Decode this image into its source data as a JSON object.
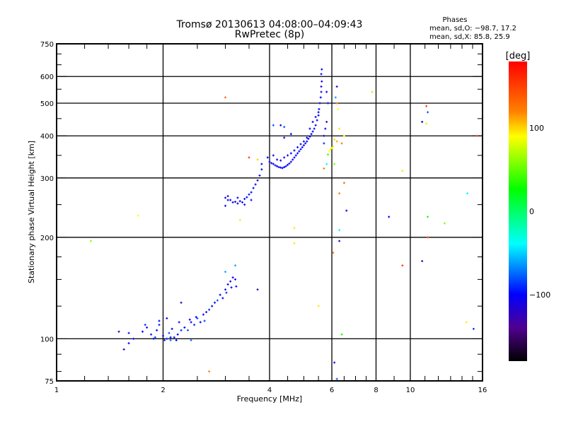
{
  "chart_data": {
    "type": "scatter",
    "title": "Tromsø 20130613 04:08:00–04:09:43",
    "subtitle": "RwPretec (8p)",
    "stats": {
      "header": "Phases",
      "o_line": "mean, sd,O:  −98.7, 17.2",
      "x_line": "mean, sd,X:  85.8, 25.9"
    },
    "xlabel": "Frequency [MHz]",
    "ylabel": "Stationary phase Virtual Height [km]",
    "xscale": "log",
    "yscale": "log",
    "xlim": [
      1,
      16
    ],
    "ylim": [
      75,
      750
    ],
    "xticks": [
      1,
      2,
      4,
      6,
      8,
      10,
      16
    ],
    "xtick_labels": [
      "1",
      "2",
      "4",
      "6",
      "8",
      "10",
      "16"
    ],
    "yticks": [
      75,
      100,
      200,
      300,
      400,
      500,
      600,
      750
    ],
    "ytick_labels": [
      "75",
      "100",
      "200",
      "300",
      "400",
      "500",
      "600",
      "750"
    ],
    "xgrid": [
      2,
      4,
      6,
      8,
      10
    ],
    "ygrid": [
      100,
      200,
      300,
      400,
      500,
      600
    ],
    "grid": true,
    "colorbar": {
      "label": "[deg]",
      "range": [
        -180,
        180
      ],
      "ticks": [
        100,
        0,
        -100
      ],
      "tick_labels": [
        "100",
        "0",
        "−100"
      ],
      "stops": [
        [
          180,
          "#ff0000"
        ],
        [
          120,
          "#ff8000"
        ],
        [
          90,
          "#ffff00"
        ],
        [
          26,
          "#00ff00"
        ],
        [
          -39,
          "#00ffff"
        ],
        [
          -100,
          "#0000ff"
        ],
        [
          -140,
          "#500090"
        ],
        [
          -180,
          "#000000"
        ]
      ]
    },
    "points_fields": [
      "frequency_MHz",
      "height_km",
      "phase_deg"
    ],
    "points": [
      [
        1.55,
        93,
        -110
      ],
      [
        1.6,
        97,
        -100
      ],
      [
        1.6,
        104,
        -95
      ],
      [
        1.65,
        100,
        -105
      ],
      [
        1.75,
        105,
        -100
      ],
      [
        1.78,
        110,
        -90
      ],
      [
        1.8,
        108,
        -100
      ],
      [
        1.85,
        103,
        -95
      ],
      [
        1.88,
        100,
        -100
      ],
      [
        1.9,
        101,
        -85
      ],
      [
        1.92,
        106,
        -100
      ],
      [
        1.95,
        110,
        -95
      ],
      [
        2.0,
        102,
        -100
      ],
      [
        2.02,
        99,
        -90
      ],
      [
        2.05,
        100,
        -100
      ],
      [
        2.08,
        104,
        -80
      ],
      [
        2.1,
        101,
        -100
      ],
      [
        2.12,
        107,
        -100
      ],
      [
        2.15,
        101,
        -95
      ],
      [
        2.18,
        99,
        -100
      ],
      [
        2.2,
        103,
        -100
      ],
      [
        2.22,
        112,
        -110
      ],
      [
        2.25,
        106,
        -90
      ],
      [
        2.3,
        108,
        -100
      ],
      [
        2.35,
        106,
        -80
      ],
      [
        2.38,
        114,
        -100
      ],
      [
        2.4,
        112,
        -100
      ],
      [
        2.45,
        110,
        -90
      ],
      [
        2.48,
        116,
        -100
      ],
      [
        2.5,
        115,
        -80
      ],
      [
        2.55,
        112,
        -100
      ],
      [
        2.6,
        118,
        -100
      ],
      [
        2.62,
        113,
        -85
      ],
      [
        2.65,
        120,
        -100
      ],
      [
        2.7,
        122,
        -90
      ],
      [
        2.75,
        125,
        -100
      ],
      [
        2.8,
        128,
        -100
      ],
      [
        2.85,
        130,
        -80
      ],
      [
        2.9,
        135,
        -100
      ],
      [
        2.95,
        132,
        -100
      ],
      [
        3.0,
        140,
        -100
      ],
      [
        3.02,
        137,
        -90
      ],
      [
        3.05,
        145,
        -100
      ],
      [
        3.1,
        148,
        -105
      ],
      [
        3.12,
        142,
        -100
      ],
      [
        3.15,
        152,
        -100
      ],
      [
        3.2,
        150,
        -100
      ],
      [
        3.22,
        143,
        -100
      ],
      [
        2.25,
        128,
        -120
      ],
      [
        2.4,
        99,
        -70
      ],
      [
        1.95,
        113,
        -100
      ],
      [
        2.05,
        115,
        -100
      ],
      [
        3.0,
        158,
        -60
      ],
      [
        2.05,
        100,
        -85
      ],
      [
        2.1,
        99,
        -70
      ],
      [
        3.0,
        262,
        -110
      ],
      [
        3.05,
        258,
        -100
      ],
      [
        3.1,
        258,
        -100
      ],
      [
        3.15,
        254,
        -110
      ],
      [
        3.2,
        255,
        -100
      ],
      [
        3.25,
        252,
        -100
      ],
      [
        3.3,
        256,
        -100
      ],
      [
        3.35,
        254,
        -100
      ],
      [
        3.4,
        260,
        -100
      ],
      [
        3.45,
        263,
        -100
      ],
      [
        3.5,
        268,
        -100
      ],
      [
        3.55,
        272,
        -100
      ],
      [
        3.6,
        280,
        -100
      ],
      [
        3.65,
        287,
        -100
      ],
      [
        3.7,
        295,
        -100
      ],
      [
        3.75,
        305,
        -100
      ],
      [
        3.8,
        318,
        -100
      ],
      [
        3.0,
        248,
        -105
      ],
      [
        3.05,
        265,
        -120
      ],
      [
        3.25,
        262,
        -100
      ],
      [
        3.4,
        250,
        -110
      ],
      [
        3.55,
        258,
        -100
      ],
      [
        3.95,
        345,
        -100
      ],
      [
        4.0,
        335,
        -100
      ],
      [
        4.05,
        332,
        -100
      ],
      [
        4.1,
        330,
        -100
      ],
      [
        4.15,
        327,
        -100
      ],
      [
        4.2,
        325,
        -100
      ],
      [
        4.25,
        323,
        -110
      ],
      [
        4.3,
        322,
        -100
      ],
      [
        4.35,
        321,
        -100
      ],
      [
        4.4,
        323,
        -100
      ],
      [
        4.45,
        325,
        -100
      ],
      [
        4.5,
        328,
        -100
      ],
      [
        4.55,
        331,
        -100
      ],
      [
        4.6,
        335,
        -100
      ],
      [
        4.65,
        340,
        -100
      ],
      [
        4.7,
        345,
        -100
      ],
      [
        4.75,
        350,
        -100
      ],
      [
        4.8,
        355,
        -100
      ],
      [
        4.85,
        360,
        -100
      ],
      [
        4.9,
        365,
        -100
      ],
      [
        4.95,
        370,
        -100
      ],
      [
        5.0,
        375,
        -100
      ],
      [
        5.05,
        380,
        -100
      ],
      [
        5.1,
        385,
        -100
      ],
      [
        5.15,
        392,
        -100
      ],
      [
        5.2,
        398,
        -100
      ],
      [
        5.25,
        405,
        -100
      ],
      [
        5.3,
        412,
        -100
      ],
      [
        5.35,
        420,
        -100
      ],
      [
        5.4,
        430,
        -100
      ],
      [
        5.45,
        445,
        -100
      ],
      [
        5.5,
        460,
        -100
      ],
      [
        5.52,
        480,
        -100
      ],
      [
        5.55,
        500,
        -100
      ],
      [
        5.58,
        520,
        -100
      ],
      [
        5.6,
        540,
        -100
      ],
      [
        5.6,
        560,
        -110
      ],
      [
        5.62,
        580,
        -100
      ],
      [
        5.6,
        610,
        -100
      ],
      [
        5.62,
        630,
        -100
      ],
      [
        4.2,
        340,
        -100
      ],
      [
        4.3,
        338,
        -100
      ],
      [
        4.4,
        345,
        -100
      ],
      [
        4.5,
        350,
        -110
      ],
      [
        4.6,
        355,
        -100
      ],
      [
        4.7,
        362,
        -100
      ],
      [
        4.8,
        370,
        -100
      ],
      [
        4.9,
        378,
        -100
      ],
      [
        5.0,
        385,
        -100
      ],
      [
        5.1,
        395,
        -100
      ],
      [
        5.2,
        420,
        -100
      ],
      [
        5.3,
        440,
        -100
      ],
      [
        5.4,
        455,
        -100
      ],
      [
        5.5,
        470,
        -100
      ],
      [
        5.7,
        400,
        -100
      ],
      [
        5.75,
        420,
        -100
      ],
      [
        5.8,
        440,
        -110
      ],
      [
        5.85,
        500,
        -100
      ],
      [
        5.8,
        540,
        -100
      ],
      [
        5.7,
        380,
        -90
      ],
      [
        4.3,
        430,
        -100
      ],
      [
        4.4,
        425,
        -80
      ],
      [
        4.6,
        405,
        -100
      ],
      [
        4.4,
        395,
        -100
      ],
      [
        3.8,
        330,
        -100
      ],
      [
        4.1,
        350,
        -110
      ],
      [
        5.9,
        360,
        90
      ],
      [
        5.95,
        365,
        95
      ],
      [
        6.0,
        368,
        85
      ],
      [
        6.05,
        372,
        90
      ],
      [
        5.85,
        352,
        40
      ],
      [
        6.1,
        390,
        100
      ],
      [
        6.2,
        385,
        110
      ],
      [
        6.3,
        420,
        95
      ],
      [
        6.25,
        480,
        90
      ],
      [
        6.2,
        500,
        130
      ],
      [
        6.2,
        560,
        -120
      ],
      [
        6.15,
        520,
        -60
      ],
      [
        6.1,
        330,
        60
      ],
      [
        6.4,
        380,
        120
      ],
      [
        6.5,
        400,
        90
      ],
      [
        5.8,
        330,
        -40
      ],
      [
        5.7,
        320,
        120
      ],
      [
        3.0,
        520,
        130
      ],
      [
        1.25,
        195,
        60
      ],
      [
        1.7,
        232,
        90
      ],
      [
        2.7,
        80,
        120
      ],
      [
        3.3,
        225,
        95
      ],
      [
        3.5,
        345,
        150
      ],
      [
        3.7,
        140,
        -130
      ],
      [
        3.2,
        165,
        -60
      ],
      [
        4.7,
        213,
        95
      ],
      [
        4.7,
        192,
        95
      ],
      [
        5.5,
        125,
        95
      ],
      [
        6.05,
        180,
        130
      ],
      [
        6.3,
        270,
        120
      ],
      [
        6.3,
        210,
        -40
      ],
      [
        6.3,
        195,
        -120
      ],
      [
        6.4,
        103,
        30
      ],
      [
        6.1,
        85,
        -100
      ],
      [
        6.6,
        240,
        -110
      ],
      [
        6.5,
        290,
        130
      ],
      [
        8.7,
        230,
        -100
      ],
      [
        9.5,
        315,
        95
      ],
      [
        9.5,
        165,
        150
      ],
      [
        10.8,
        170,
        -130
      ],
      [
        10.8,
        440,
        -100
      ],
      [
        11.1,
        490,
        150
      ],
      [
        11.2,
        470,
        -80
      ],
      [
        11.1,
        435,
        95
      ],
      [
        11.2,
        230,
        30
      ],
      [
        11.2,
        200,
        150
      ],
      [
        12.5,
        220,
        60
      ],
      [
        14.5,
        270,
        -40
      ],
      [
        15.4,
        400,
        150
      ],
      [
        14.4,
        112,
        95
      ],
      [
        15.1,
        107,
        -90
      ],
      [
        7.8,
        540,
        70
      ],
      [
        6.2,
        76,
        -80
      ],
      [
        1.5,
        105,
        -110
      ],
      [
        4.1,
        430,
        -80
      ],
      [
        3.7,
        340,
        100
      ]
    ]
  }
}
